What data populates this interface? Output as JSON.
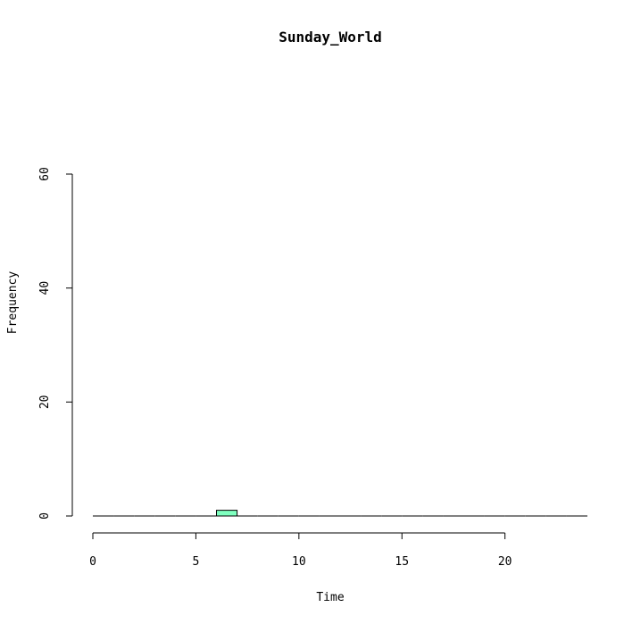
{
  "chart_data": {
    "type": "bar",
    "title": "Sunday_World",
    "xlabel": "Time",
    "ylabel": "Frequency",
    "x_ticks": [
      0,
      5,
      10,
      15,
      20
    ],
    "y_ticks": [
      0,
      20,
      40,
      60
    ],
    "xlim": [
      0,
      24
    ],
    "ylim": [
      0,
      60
    ],
    "bin_width": 1,
    "bins_start": [
      0,
      1,
      2,
      3,
      4,
      5,
      6,
      7,
      8,
      9,
      10,
      11,
      12,
      13,
      14,
      15,
      16,
      17,
      18,
      19,
      20,
      21,
      22,
      23
    ],
    "values": [
      0,
      0,
      0,
      0,
      0,
      0,
      1,
      0,
      0,
      0,
      0,
      0,
      0,
      0,
      0,
      0,
      0,
      0,
      0,
      0,
      0,
      0,
      0,
      0
    ],
    "bar_color": "#7fffbf",
    "bar_stroke": "#000000",
    "grid": false
  }
}
